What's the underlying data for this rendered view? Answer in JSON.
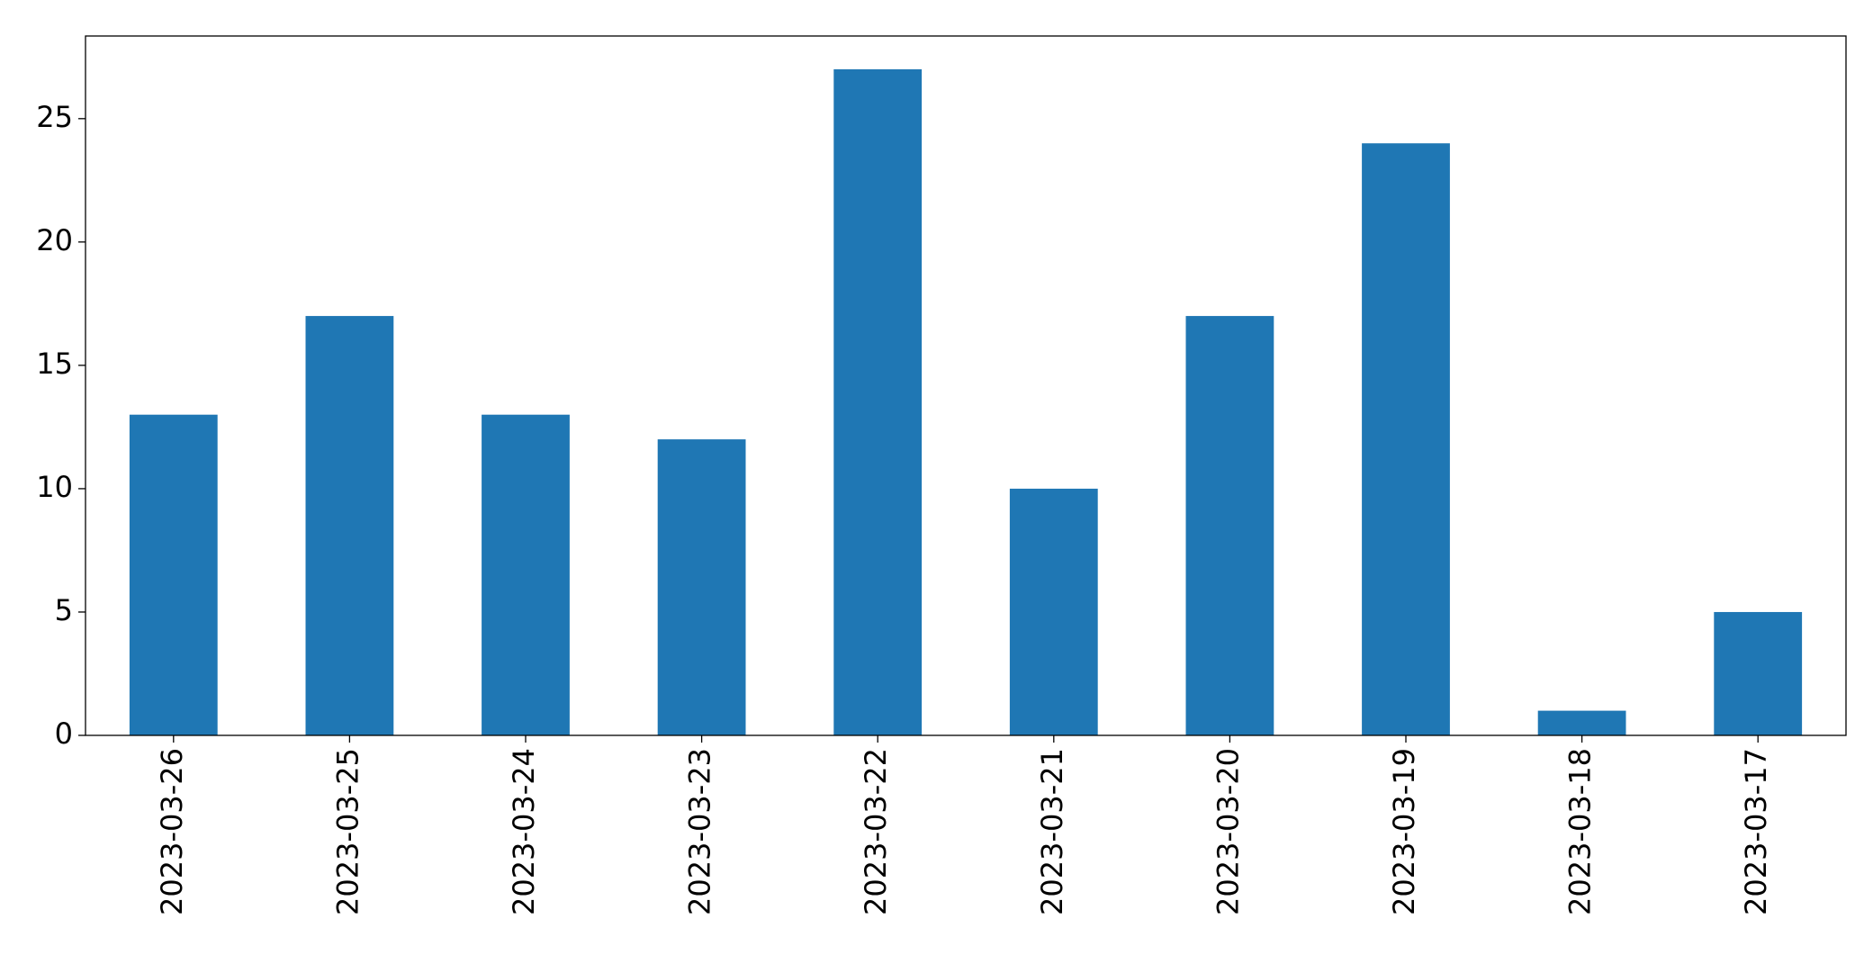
{
  "chart_data": {
    "type": "bar",
    "categories": [
      "2023-03-26",
      "2023-03-25",
      "2023-03-24",
      "2023-03-23",
      "2023-03-22",
      "2023-03-21",
      "2023-03-20",
      "2023-03-19",
      "2023-03-18",
      "2023-03-17"
    ],
    "values": [
      13,
      17,
      13,
      12,
      27,
      10,
      17,
      24,
      1,
      5
    ],
    "color": "#1f77b4",
    "ylim": [
      0,
      28.35
    ],
    "yticks": [
      0,
      5,
      10,
      15,
      20,
      25
    ],
    "grid": false
  }
}
